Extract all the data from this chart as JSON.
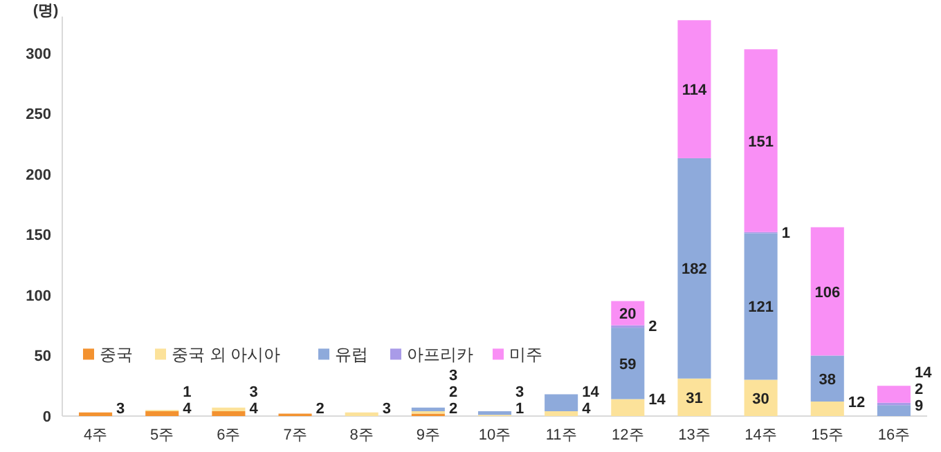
{
  "chart_data": {
    "type": "bar",
    "stacked": true,
    "ylabel": "(명)",
    "categories": [
      "4주",
      "5주",
      "6주",
      "7주",
      "8주",
      "9주",
      "10주",
      "11주",
      "12주",
      "13주",
      "14주",
      "15주",
      "16주"
    ],
    "series": [
      {
        "name": "중국",
        "color": "#f39230",
        "values": [
          3,
          4,
          4,
          2,
          null,
          2,
          null,
          null,
          null,
          null,
          null,
          null,
          null
        ]
      },
      {
        "name": "중국 외 아시아",
        "color": "#fce29a",
        "values": [
          null,
          1,
          3,
          null,
          3,
          2,
          1,
          4,
          14,
          31,
          30,
          12,
          null
        ]
      },
      {
        "name": "유럽",
        "color": "#8eaadb",
        "values": [
          null,
          null,
          null,
          null,
          null,
          3,
          3,
          14,
          59,
          182,
          121,
          38,
          9
        ]
      },
      {
        "name": "아프리카",
        "color": "#a99be8",
        "values": [
          null,
          null,
          null,
          null,
          null,
          null,
          null,
          null,
          2,
          null,
          1,
          null,
          2
        ]
      },
      {
        "name": "미주",
        "color": "#f98ff5",
        "values": [
          null,
          null,
          null,
          null,
          null,
          null,
          null,
          null,
          20,
          114,
          151,
          106,
          14
        ]
      }
    ],
    "ylim": [
      0,
      330
    ],
    "yticks": [
      0,
      50,
      100,
      150,
      200,
      250,
      300
    ],
    "grid": false,
    "legend": "bottom left",
    "data_labels": true
  }
}
